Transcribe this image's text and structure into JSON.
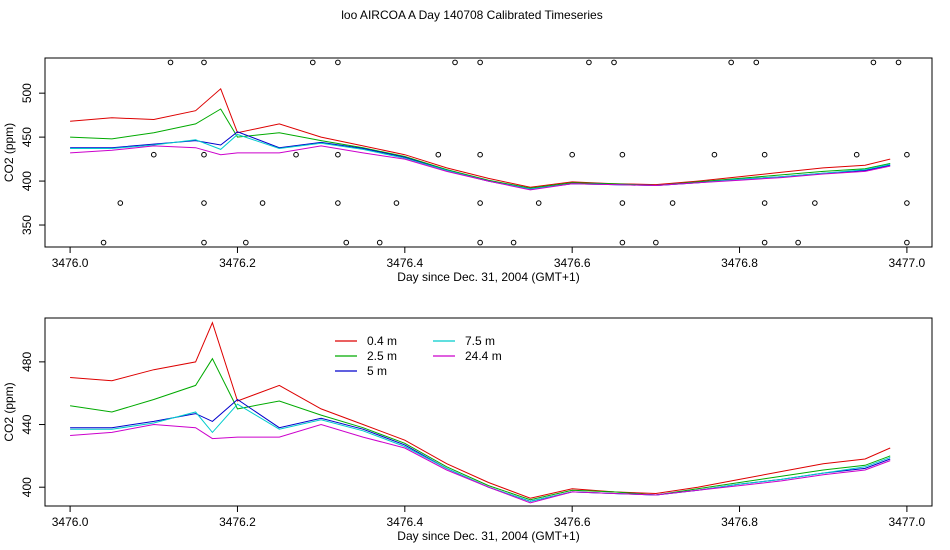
{
  "figure_title": "loo AIRCOA A  Day 140708  Calibrated Timeseries",
  "colors": {
    "0.4 m": "#dd0000",
    "2.5 m": "#00aa00",
    "5 m": "#0000cc",
    "7.5 m": "#00cccc",
    "24.4 m": "#cc00cc",
    "markers": "#000000"
  },
  "chart_data": [
    {
      "type": "line",
      "title": "",
      "xlabel": "Day since Dec. 31, 2004 (GMT+1)",
      "ylabel": "CO2 (ppm)",
      "xlim": [
        3475.97,
        3477.03
      ],
      "ylim": [
        325,
        540
      ],
      "xticks": [
        "3476.0",
        "3476.2",
        "3476.4",
        "3476.6",
        "3476.8",
        "3477.0"
      ],
      "yticks": [
        "350",
        "400",
        "450",
        "500"
      ],
      "grid": false,
      "series": [
        {
          "name": "0.4 m",
          "x": [
            3476.0,
            3476.05,
            3476.1,
            3476.15,
            3476.18,
            3476.2,
            3476.25,
            3476.3,
            3476.35,
            3476.4,
            3476.45,
            3476.5,
            3476.55,
            3476.6,
            3476.65,
            3476.7,
            3476.75,
            3476.8,
            3476.85,
            3476.9,
            3476.95,
            3476.98
          ],
          "values": [
            468,
            472,
            470,
            480,
            505,
            455,
            465,
            450,
            440,
            430,
            415,
            403,
            393,
            399,
            397,
            396,
            400,
            405,
            410,
            415,
            418,
            425
          ]
        },
        {
          "name": "2.5 m",
          "x": [
            3476.0,
            3476.05,
            3476.1,
            3476.15,
            3476.18,
            3476.2,
            3476.25,
            3476.3,
            3476.35,
            3476.4,
            3476.45,
            3476.5,
            3476.55,
            3476.6,
            3476.65,
            3476.7,
            3476.75,
            3476.8,
            3476.85,
            3476.9,
            3476.95,
            3476.98
          ],
          "values": [
            450,
            448,
            455,
            465,
            482,
            450,
            455,
            446,
            438,
            428,
            413,
            401,
            392,
            398,
            397,
            395,
            399,
            403,
            407,
            411,
            414,
            420
          ]
        },
        {
          "name": "5 m",
          "x": [
            3476.0,
            3476.05,
            3476.1,
            3476.15,
            3476.18,
            3476.2,
            3476.25,
            3476.3,
            3476.35,
            3476.4,
            3476.45,
            3476.5,
            3476.55,
            3476.6,
            3476.65,
            3476.7,
            3476.75,
            3476.8,
            3476.85,
            3476.9,
            3476.95,
            3476.98
          ],
          "values": [
            438,
            438,
            442,
            446,
            441,
            456,
            438,
            444,
            437,
            427,
            412,
            400,
            391,
            397,
            396,
            395,
            398,
            402,
            405,
            409,
            412,
            418
          ]
        },
        {
          "name": "7.5 m",
          "x": [
            3476.0,
            3476.05,
            3476.1,
            3476.15,
            3476.18,
            3476.2,
            3476.25,
            3476.3,
            3476.35,
            3476.4,
            3476.45,
            3476.5,
            3476.55,
            3476.6,
            3476.65,
            3476.7,
            3476.75,
            3476.8,
            3476.85,
            3476.9,
            3476.95,
            3476.98
          ],
          "values": [
            437,
            437,
            441,
            447,
            436,
            453,
            437,
            443,
            436,
            426,
            412,
            400,
            391,
            397,
            396,
            395,
            398,
            402,
            405,
            409,
            413,
            419
          ]
        },
        {
          "name": "24.4 m",
          "x": [
            3476.0,
            3476.05,
            3476.1,
            3476.15,
            3476.18,
            3476.2,
            3476.25,
            3476.3,
            3476.35,
            3476.4,
            3476.45,
            3476.5,
            3476.55,
            3476.6,
            3476.65,
            3476.7,
            3476.75,
            3476.8,
            3476.85,
            3476.9,
            3476.95,
            3476.98
          ],
          "values": [
            432,
            435,
            440,
            438,
            430,
            432,
            432,
            440,
            432,
            425,
            411,
            400,
            390,
            397,
            396,
            395,
            398,
            401,
            404,
            408,
            411,
            417
          ]
        },
        {
          "name": "",
          "style": "points",
          "x": [
            3476.12,
            3476.16,
            3476.29,
            3476.32,
            3476.46,
            3476.49,
            3476.62,
            3476.65,
            3476.79,
            3476.82,
            3476.96,
            3476.99,
            3476.1,
            3476.16,
            3476.27,
            3476.32,
            3476.44,
            3476.49,
            3476.6,
            3476.66,
            3476.77,
            3476.83,
            3476.94,
            3477.0,
            3476.06,
            3476.16,
            3476.23,
            3476.32,
            3476.39,
            3476.49,
            3476.56,
            3476.66,
            3476.72,
            3476.83,
            3476.89,
            3477.0,
            3476.04,
            3476.16,
            3476.21,
            3476.33,
            3476.37,
            3476.49,
            3476.53,
            3476.66,
            3476.7,
            3476.83,
            3476.87,
            3477.0
          ],
          "values": [
            535,
            535,
            535,
            535,
            535,
            535,
            535,
            535,
            535,
            535,
            535,
            535,
            430,
            430,
            430,
            430,
            430,
            430,
            430,
            430,
            430,
            430,
            430,
            430,
            375,
            375,
            375,
            375,
            375,
            375,
            375,
            375,
            375,
            375,
            375,
            375,
            330,
            330,
            330,
            330,
            330,
            330,
            330,
            330,
            330,
            330,
            330,
            330
          ]
        }
      ]
    },
    {
      "type": "line",
      "title": "",
      "xlabel": "Day since Dec. 31, 2004 (GMT+1)",
      "ylabel": "CO2 (ppm)",
      "xlim": [
        3475.97,
        3477.03
      ],
      "ylim": [
        388,
        508
      ],
      "xticks": [
        "3476.0",
        "3476.2",
        "3476.4",
        "3476.6",
        "3476.8",
        "3477.0"
      ],
      "yticks": [
        "400",
        "440",
        "480"
      ],
      "grid": false,
      "legend": "top-center",
      "series": [
        {
          "name": "0.4 m",
          "x": [
            3476.0,
            3476.05,
            3476.1,
            3476.15,
            3476.17,
            3476.2,
            3476.25,
            3476.3,
            3476.35,
            3476.4,
            3476.45,
            3476.5,
            3476.55,
            3476.6,
            3476.65,
            3476.7,
            3476.75,
            3476.8,
            3476.85,
            3476.9,
            3476.95,
            3476.98
          ],
          "values": [
            470,
            468,
            475,
            480,
            505,
            455,
            465,
            450,
            440,
            430,
            415,
            403,
            393,
            399,
            397,
            396,
            400,
            405,
            410,
            415,
            418,
            425
          ]
        },
        {
          "name": "2.5 m",
          "x": [
            3476.0,
            3476.05,
            3476.1,
            3476.15,
            3476.17,
            3476.2,
            3476.25,
            3476.3,
            3476.35,
            3476.4,
            3476.45,
            3476.5,
            3476.55,
            3476.6,
            3476.65,
            3476.7,
            3476.75,
            3476.8,
            3476.85,
            3476.9,
            3476.95,
            3476.98
          ],
          "values": [
            452,
            448,
            456,
            465,
            482,
            450,
            455,
            446,
            438,
            428,
            413,
            401,
            392,
            398,
            397,
            395,
            399,
            403,
            407,
            411,
            414,
            420
          ]
        },
        {
          "name": "5 m",
          "x": [
            3476.0,
            3476.05,
            3476.1,
            3476.15,
            3476.17,
            3476.2,
            3476.25,
            3476.3,
            3476.35,
            3476.4,
            3476.45,
            3476.5,
            3476.55,
            3476.6,
            3476.65,
            3476.7,
            3476.75,
            3476.8,
            3476.85,
            3476.9,
            3476.95,
            3476.98
          ],
          "values": [
            438,
            438,
            442,
            447,
            442,
            456,
            438,
            444,
            437,
            427,
            412,
            400,
            391,
            397,
            396,
            395,
            398,
            402,
            405,
            409,
            412,
            418
          ]
        },
        {
          "name": "7.5 m",
          "x": [
            3476.0,
            3476.05,
            3476.1,
            3476.15,
            3476.17,
            3476.2,
            3476.25,
            3476.3,
            3476.35,
            3476.4,
            3476.45,
            3476.5,
            3476.55,
            3476.6,
            3476.65,
            3476.7,
            3476.75,
            3476.8,
            3476.85,
            3476.9,
            3476.95,
            3476.98
          ],
          "values": [
            437,
            437,
            441,
            448,
            435,
            453,
            437,
            443,
            436,
            426,
            412,
            400,
            391,
            397,
            396,
            395,
            398,
            402,
            405,
            409,
            413,
            419
          ]
        },
        {
          "name": "24.4 m",
          "x": [
            3476.0,
            3476.05,
            3476.1,
            3476.15,
            3476.17,
            3476.2,
            3476.25,
            3476.3,
            3476.35,
            3476.4,
            3476.45,
            3476.5,
            3476.55,
            3476.6,
            3476.65,
            3476.7,
            3476.75,
            3476.8,
            3476.85,
            3476.9,
            3476.95,
            3476.98
          ],
          "values": [
            433,
            435,
            440,
            438,
            431,
            432,
            432,
            440,
            432,
            425,
            411,
            400,
            390,
            397,
            396,
            395,
            398,
            401,
            404,
            408,
            411,
            417
          ]
        }
      ]
    }
  ]
}
